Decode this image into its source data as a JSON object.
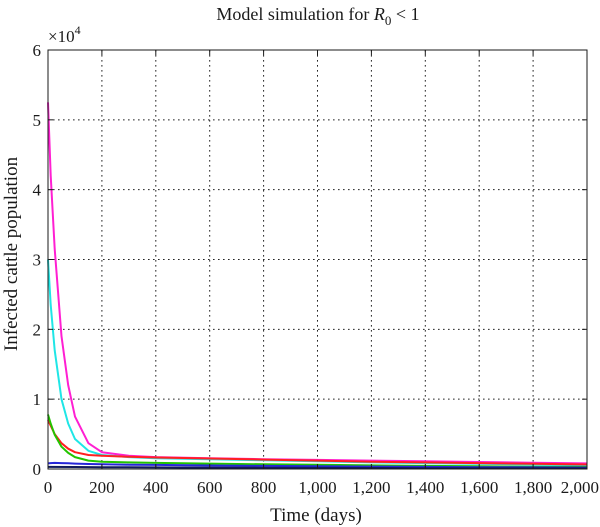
{
  "chart_data": {
    "type": "line",
    "title": "Model simulation for",
    "title_symbol": "R",
    "title_subscript": "0",
    "title_suffix": " < 1",
    "xlabel": "Time (days)",
    "ylabel": "Infected cattle population",
    "y_exponent_prefix": "×10",
    "y_exponent": "4",
    "xlim": [
      0,
      2000
    ],
    "ylim": [
      0,
      60000
    ],
    "grid": true,
    "grid_style": "dotted",
    "x_ticks": [
      0,
      200,
      400,
      600,
      800,
      1000,
      1200,
      1400,
      1600,
      1800,
      2000
    ],
    "x_tick_labels": [
      "0",
      "200",
      "400",
      "600",
      "800",
      "1,000",
      "1,200",
      "1,400",
      "1,600",
      "1,800",
      "2,000"
    ],
    "y_ticks": [
      0,
      10000,
      20000,
      30000,
      40000,
      50000,
      60000
    ],
    "y_tick_labels": [
      "0",
      "1",
      "2",
      "3",
      "4",
      "5",
      "6"
    ],
    "series": [
      {
        "color": "#ff1fd2",
        "x": [
          0,
          10,
          25,
          50,
          75,
          100,
          150,
          200,
          300,
          400,
          600,
          800,
          1000,
          1200,
          1400,
          1600,
          1800,
          2000
        ],
        "y": [
          52500,
          42000,
          31500,
          19000,
          12000,
          7500,
          3700,
          2400,
          1900,
          1700,
          1550,
          1400,
          1300,
          1200,
          1100,
          1000,
          900,
          800
        ]
      },
      {
        "color": "#1fe6e6",
        "x": [
          0,
          10,
          25,
          50,
          75,
          100,
          150,
          200,
          300,
          400,
          600,
          800,
          1000,
          1200,
          1400,
          1600,
          1800,
          2000
        ],
        "y": [
          30000,
          23500,
          17000,
          10000,
          6500,
          4300,
          2600,
          2000,
          1700,
          1550,
          1400,
          1250,
          1100,
          950,
          850,
          750,
          650,
          550
        ]
      },
      {
        "color": "#ff2020",
        "x": [
          0,
          10,
          25,
          50,
          75,
          100,
          150,
          200,
          300,
          400,
          600,
          800,
          1000,
          1200,
          1400,
          1600,
          1800,
          2000
        ],
        "y": [
          7000,
          6200,
          5000,
          3700,
          2900,
          2400,
          2000,
          1900,
          1750,
          1650,
          1500,
          1350,
          1200,
          1050,
          950,
          850,
          750,
          650
        ]
      },
      {
        "color": "#22c400",
        "x": [
          0,
          10,
          25,
          50,
          75,
          100,
          150,
          200,
          300,
          400,
          600,
          800,
          1000,
          1200,
          1400,
          1600,
          1800,
          2000
        ],
        "y": [
          7800,
          6500,
          4900,
          3200,
          2300,
          1700,
          1200,
          1050,
          950,
          880,
          780,
          680,
          600,
          520,
          450,
          390,
          330,
          280
        ]
      },
      {
        "color": "#2626d9",
        "x": [
          0,
          10,
          25,
          50,
          75,
          100,
          150,
          200,
          300,
          400,
          600,
          800,
          1000,
          1200,
          1400,
          1600,
          1800,
          2000
        ],
        "y": [
          800,
          850,
          880,
          850,
          820,
          780,
          720,
          680,
          620,
          580,
          500,
          440,
          390,
          340,
          300,
          260,
          230,
          200
        ]
      },
      {
        "color": "#101a5c",
        "x": [
          0,
          100,
          200,
          400,
          600,
          800,
          1000,
          1200,
          1400,
          1600,
          1800,
          2000
        ],
        "y": [
          300,
          280,
          260,
          230,
          200,
          180,
          160,
          140,
          120,
          110,
          100,
          90
        ]
      }
    ]
  }
}
